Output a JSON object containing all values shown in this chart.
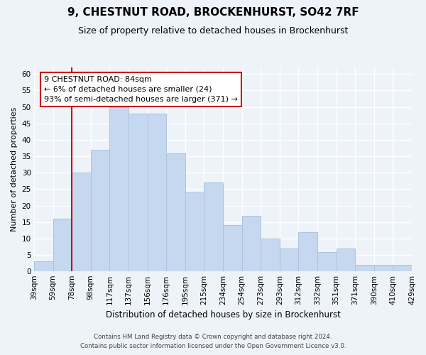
{
  "title": "9, CHESTNUT ROAD, BROCKENHURST, SO42 7RF",
  "subtitle": "Size of property relative to detached houses in Brockenhurst",
  "xlabel": "Distribution of detached houses by size in Brockenhurst",
  "ylabel": "Number of detached properties",
  "footer_line1": "Contains HM Land Registry data © Crown copyright and database right 2024.",
  "footer_line2": "Contains public sector information licensed under the Open Government Licence v3.0.",
  "bins": [
    "39sqm",
    "59sqm",
    "78sqm",
    "98sqm",
    "117sqm",
    "137sqm",
    "156sqm",
    "176sqm",
    "195sqm",
    "215sqm",
    "234sqm",
    "254sqm",
    "273sqm",
    "293sqm",
    "312sqm",
    "332sqm",
    "351sqm",
    "371sqm",
    "390sqm",
    "410sqm",
    "429sqm"
  ],
  "values": [
    3,
    16,
    30,
    37,
    50,
    48,
    48,
    36,
    24,
    27,
    14,
    17,
    10,
    7,
    12,
    6,
    7,
    2,
    2,
    2
  ],
  "bar_color": "#c5d8f0",
  "bar_edge_color": "#aac4e0",
  "vline_color": "#cc0000",
  "annotation_title": "9 CHESTNUT ROAD: 84sqm",
  "annotation_line1": "← 6% of detached houses are smaller (24)",
  "annotation_line2": "93% of semi-detached houses are larger (371) →",
  "annotation_box_facecolor": "#ffffff",
  "annotation_box_edgecolor": "#cc0000",
  "ylim": [
    0,
    62
  ],
  "yticks": [
    0,
    5,
    10,
    15,
    20,
    25,
    30,
    35,
    40,
    45,
    50,
    55,
    60
  ],
  "background_color": "#eef2f9",
  "title_fontsize": 11,
  "subtitle_fontsize": 9,
  "tick_fontsize": 7.5,
  "ylabel_fontsize": 8,
  "xlabel_fontsize": 8.5
}
